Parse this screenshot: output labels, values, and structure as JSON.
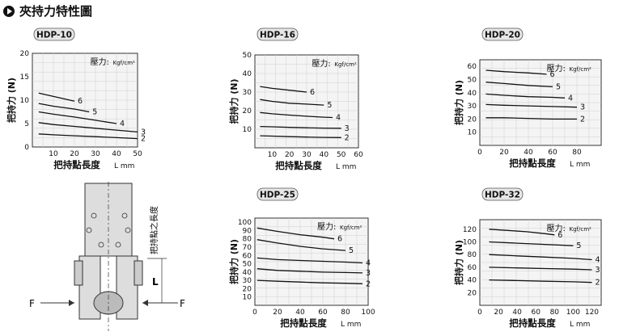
{
  "page": {
    "title": "夾持力特性圖"
  },
  "chart_data": [
    {
      "type": "line",
      "model": "HDP-10",
      "xlabel": "把持點長度",
      "xunit": "L mm",
      "ylabel": "把持力 (N)",
      "pressure_label": "壓力:",
      "pressure_unit": "Kgf/cm²",
      "xlim": [
        0,
        50
      ],
      "ylim": [
        0,
        20
      ],
      "xticks": [
        10,
        20,
        30,
        40,
        50
      ],
      "yticks": [
        0,
        5,
        10,
        15,
        20
      ],
      "grid": true,
      "series": [
        {
          "name": "6",
          "x": [
            3,
            10,
            20
          ],
          "y": [
            11.5,
            10.8,
            9.8
          ]
        },
        {
          "name": "5",
          "x": [
            3,
            10,
            20,
            27
          ],
          "y": [
            9.3,
            8.7,
            8.1,
            7.5
          ]
        },
        {
          "name": "4",
          "x": [
            3,
            10,
            20,
            30,
            40
          ],
          "y": [
            7.5,
            7.0,
            6.4,
            5.7,
            5.0
          ]
        },
        {
          "name": "3",
          "x": [
            3,
            10,
            20,
            30,
            40,
            50
          ],
          "y": [
            5.2,
            4.8,
            4.4,
            4.0,
            3.6,
            3.2
          ]
        },
        {
          "name": "2",
          "x": [
            3,
            10,
            20,
            30,
            40,
            50
          ],
          "y": [
            2.8,
            2.6,
            2.4,
            2.2,
            2.0,
            1.8
          ]
        }
      ]
    },
    {
      "type": "line",
      "model": "HDP-16",
      "xlabel": "把持點長度",
      "xunit": "L mm",
      "ylabel": "把持力 (N)",
      "pressure_label": "壓力:",
      "pressure_unit": "Kgf/cm²",
      "xlim": [
        0,
        60
      ],
      "ylim": [
        0,
        50
      ],
      "xticks": [
        10,
        20,
        30,
        40,
        50,
        60
      ],
      "yticks": [
        10,
        20,
        30,
        40,
        50
      ],
      "grid": true,
      "series": [
        {
          "name": "6",
          "x": [
            3,
            10,
            20,
            30
          ],
          "y": [
            33,
            32,
            31,
            30
          ]
        },
        {
          "name": "5",
          "x": [
            3,
            10,
            20,
            30,
            40
          ],
          "y": [
            26,
            25,
            24,
            23.5,
            23
          ]
        },
        {
          "name": "4",
          "x": [
            3,
            10,
            20,
            30,
            40,
            45
          ],
          "y": [
            19,
            18.3,
            17.6,
            17,
            16.5,
            16.3
          ]
        },
        {
          "name": "3",
          "x": [
            3,
            10,
            20,
            30,
            40,
            50
          ],
          "y": [
            11.5,
            11.3,
            11,
            10.8,
            10.6,
            10.5
          ]
        },
        {
          "name": "2",
          "x": [
            3,
            10,
            20,
            30,
            40,
            50
          ],
          "y": [
            6.5,
            6.3,
            6,
            5.8,
            5.6,
            5.5
          ]
        }
      ]
    },
    {
      "type": "line",
      "model": "HDP-20",
      "xlabel": "把持點長度",
      "xunit": "L mm",
      "ylabel": "把持力 (N)",
      "pressure_label": "壓力:",
      "pressure_unit": "Kgf/cm²",
      "xlim": [
        0,
        100
      ],
      "ylim": [
        0,
        65
      ],
      "xticks": [
        0,
        20,
        40,
        60,
        80
      ],
      "yticks": [
        10,
        20,
        30,
        40,
        50,
        60
      ],
      "grid": true,
      "series": [
        {
          "name": "6",
          "x": [
            5,
            20,
            40,
            55
          ],
          "y": [
            57,
            56,
            55,
            54
          ]
        },
        {
          "name": "5",
          "x": [
            5,
            20,
            40,
            60
          ],
          "y": [
            48,
            47,
            45.5,
            44.5
          ]
        },
        {
          "name": "4",
          "x": [
            5,
            20,
            40,
            60,
            70
          ],
          "y": [
            39,
            38,
            37,
            36.5,
            36
          ]
        },
        {
          "name": "3",
          "x": [
            5,
            20,
            40,
            60,
            80
          ],
          "y": [
            31,
            30.5,
            30,
            29.5,
            29
          ]
        },
        {
          "name": "2",
          "x": [
            5,
            20,
            40,
            60,
            80
          ],
          "y": [
            21,
            21,
            20.5,
            20,
            20
          ]
        }
      ]
    },
    {
      "type": "line",
      "model": "HDP-25",
      "xlabel": "把持點長度",
      "xunit": "L mm",
      "ylabel": "把持力 (N)",
      "pressure_label": "壓力:",
      "pressure_unit": "Kgf/cm²",
      "xlim": [
        0,
        100
      ],
      "ylim": [
        0,
        105
      ],
      "xticks": [
        0,
        20,
        40,
        60,
        80,
        100
      ],
      "yticks": [
        10,
        20,
        30,
        40,
        50,
        60,
        70,
        80,
        90,
        100
      ],
      "grid": true,
      "series": [
        {
          "name": "6",
          "x": [
            2,
            20,
            40,
            60,
            70
          ],
          "y": [
            93,
            89,
            85,
            82,
            80
          ]
        },
        {
          "name": "5",
          "x": [
            2,
            20,
            40,
            60,
            80
          ],
          "y": [
            79,
            75,
            71,
            68,
            66
          ]
        },
        {
          "name": "4",
          "x": [
            2,
            20,
            40,
            60,
            80,
            95
          ],
          "y": [
            57,
            55,
            54,
            53,
            52,
            51
          ]
        },
        {
          "name": "3",
          "x": [
            2,
            20,
            40,
            60,
            80,
            95
          ],
          "y": [
            44,
            42,
            41,
            40,
            39.5,
            39
          ]
        },
        {
          "name": "2",
          "x": [
            2,
            20,
            40,
            60,
            80,
            95
          ],
          "y": [
            30,
            29,
            28,
            27,
            26.5,
            26
          ]
        }
      ]
    },
    {
      "type": "line",
      "model": "HDP-32",
      "xlabel": "把持點長度",
      "xunit": "L mm",
      "ylabel": "把持力 (N)",
      "pressure_label": "壓力:",
      "pressure_unit": "Kgf/cm²",
      "xlim": [
        0,
        130
      ],
      "ylim": [
        0,
        135
      ],
      "xticks": [
        0,
        20,
        40,
        60,
        80,
        100,
        120
      ],
      "yticks": [
        20,
        40,
        60,
        80,
        100,
        120
      ],
      "grid": true,
      "series": [
        {
          "name": "6",
          "x": [
            10,
            30,
            50,
            70,
            80
          ],
          "y": [
            120,
            118,
            116,
            113,
            111
          ]
        },
        {
          "name": "5",
          "x": [
            10,
            40,
            70,
            100
          ],
          "y": [
            100,
            98,
            96,
            94
          ]
        },
        {
          "name": "4",
          "x": [
            10,
            40,
            70,
            100,
            120
          ],
          "y": [
            80,
            78,
            76,
            74,
            72
          ]
        },
        {
          "name": "3",
          "x": [
            10,
            40,
            70,
            100,
            120
          ],
          "y": [
            60,
            59,
            58,
            57,
            56
          ]
        },
        {
          "name": "2",
          "x": [
            10,
            40,
            70,
            100,
            120
          ],
          "y": [
            40,
            39,
            38,
            37,
            36
          ]
        }
      ]
    }
  ],
  "diagram": {
    "force_label_left": "F",
    "force_label_right": "F",
    "length_label": "L",
    "vertical_caption": "把持點之長度"
  }
}
